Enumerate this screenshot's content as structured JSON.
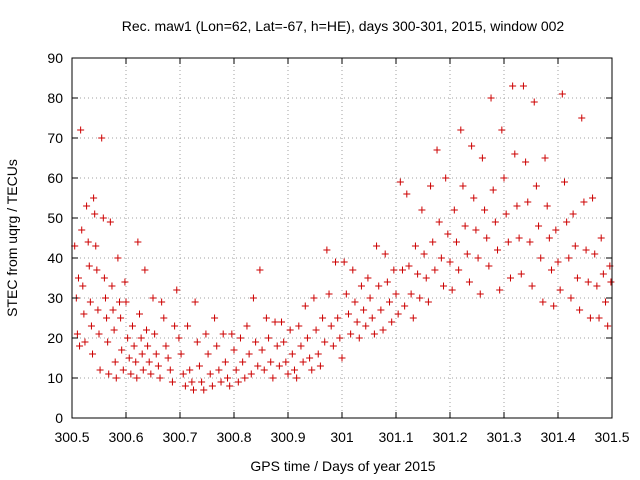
{
  "chart_data": {
    "type": "scatter",
    "title": "Rec. maw1 (Lon=62, Lat=-67, h=HE), days 300-301, 2015, window 002",
    "xlabel": "GPS time / Days of year 2015",
    "ylabel": "STEC from uqrg / TECUs",
    "xlim": [
      300.5,
      301.5
    ],
    "ylim": [
      0,
      90
    ],
    "x_ticks": [
      {
        "value": 300.5,
        "label": "300.5"
      },
      {
        "value": 300.6,
        "label": "300.6"
      },
      {
        "value": 300.7,
        "label": "300.7"
      },
      {
        "value": 300.8,
        "label": "300.8"
      },
      {
        "value": 300.9,
        "label": "300.9"
      },
      {
        "value": 301.0,
        "label": "301"
      },
      {
        "value": 301.1,
        "label": "301.1"
      },
      {
        "value": 301.2,
        "label": "301.2"
      },
      {
        "value": 301.3,
        "label": "301.3"
      },
      {
        "value": 301.4,
        "label": "301.4"
      },
      {
        "value": 301.5,
        "label": "301.5"
      }
    ],
    "y_ticks": [
      {
        "value": 0,
        "label": "0"
      },
      {
        "value": 10,
        "label": "10"
      },
      {
        "value": 20,
        "label": "20"
      },
      {
        "value": 30,
        "label": "30"
      },
      {
        "value": 40,
        "label": "40"
      },
      {
        "value": 50,
        "label": "50"
      },
      {
        "value": 60,
        "label": "60"
      },
      {
        "value": 70,
        "label": "70"
      },
      {
        "value": 80,
        "label": "80"
      },
      {
        "value": 90,
        "label": "90"
      }
    ],
    "grid": true,
    "marker": "+",
    "color": "#cc0000",
    "series": [
      {
        "name": "STEC",
        "points": [
          [
            300.505,
            43
          ],
          [
            300.508,
            30
          ],
          [
            300.51,
            21
          ],
          [
            300.512,
            35
          ],
          [
            300.514,
            18
          ],
          [
            300.516,
            72
          ],
          [
            300.518,
            47
          ],
          [
            300.52,
            33
          ],
          [
            300.522,
            26
          ],
          [
            300.524,
            19
          ],
          [
            300.527,
            53
          ],
          [
            300.53,
            44
          ],
          [
            300.532,
            38
          ],
          [
            300.534,
            29
          ],
          [
            300.536,
            23
          ],
          [
            300.538,
            16
          ],
          [
            300.54,
            55
          ],
          [
            300.542,
            51
          ],
          [
            300.544,
            43
          ],
          [
            300.546,
            37
          ],
          [
            300.548,
            27
          ],
          [
            300.55,
            21
          ],
          [
            300.552,
            12
          ],
          [
            300.555,
            70
          ],
          [
            300.558,
            50
          ],
          [
            300.56,
            35
          ],
          [
            300.562,
            30
          ],
          [
            300.564,
            25
          ],
          [
            300.566,
            19
          ],
          [
            300.568,
            11
          ],
          [
            300.571,
            49
          ],
          [
            300.574,
            33
          ],
          [
            300.576,
            27
          ],
          [
            300.578,
            22
          ],
          [
            300.58,
            14
          ],
          [
            300.582,
            10
          ],
          [
            300.585,
            40
          ],
          [
            300.588,
            29
          ],
          [
            300.59,
            25
          ],
          [
            300.592,
            17
          ],
          [
            300.595,
            12
          ],
          [
            300.598,
            34
          ],
          [
            300.6,
            29
          ],
          [
            300.603,
            20
          ],
          [
            300.606,
            15
          ],
          [
            300.609,
            11
          ],
          [
            300.612,
            23
          ],
          [
            300.615,
            18
          ],
          [
            300.618,
            14
          ],
          [
            300.62,
            10
          ],
          [
            300.622,
            44
          ],
          [
            300.625,
            26
          ],
          [
            300.628,
            20
          ],
          [
            300.63,
            16
          ],
          [
            300.632,
            12
          ],
          [
            300.635,
            37
          ],
          [
            300.638,
            22
          ],
          [
            300.64,
            18
          ],
          [
            300.643,
            14
          ],
          [
            300.646,
            11
          ],
          [
            300.65,
            30
          ],
          [
            300.653,
            21
          ],
          [
            300.656,
            16
          ],
          [
            300.66,
            13
          ],
          [
            300.663,
            10
          ],
          [
            300.666,
            29
          ],
          [
            300.67,
            25
          ],
          [
            300.674,
            18
          ],
          [
            300.678,
            15
          ],
          [
            300.682,
            12
          ],
          [
            300.686,
            9
          ],
          [
            300.69,
            23
          ],
          [
            300.694,
            32
          ],
          [
            300.698,
            20
          ],
          [
            300.702,
            16
          ],
          [
            300.706,
            11
          ],
          [
            300.71,
            8
          ],
          [
            300.714,
            23
          ],
          [
            300.718,
            12
          ],
          [
            300.722,
            9
          ],
          [
            300.725,
            7
          ],
          [
            300.728,
            29
          ],
          [
            300.732,
            19
          ],
          [
            300.736,
            13
          ],
          [
            300.74,
            9
          ],
          [
            300.744,
            7
          ],
          [
            300.748,
            21
          ],
          [
            300.752,
            16
          ],
          [
            300.756,
            11
          ],
          [
            300.76,
            8
          ],
          [
            300.764,
            25
          ],
          [
            300.768,
            18
          ],
          [
            300.772,
            12
          ],
          [
            300.776,
            9
          ],
          [
            300.78,
            21
          ],
          [
            300.784,
            14
          ],
          [
            300.788,
            10
          ],
          [
            300.792,
            8
          ],
          [
            300.796,
            21
          ],
          [
            300.8,
            17
          ],
          [
            300.804,
            12
          ],
          [
            300.808,
            9
          ],
          [
            300.812,
            20
          ],
          [
            300.816,
            14
          ],
          [
            300.82,
            10
          ],
          [
            300.824,
            23
          ],
          [
            300.828,
            16
          ],
          [
            300.832,
            11
          ],
          [
            300.836,
            30
          ],
          [
            300.84,
            19
          ],
          [
            300.844,
            13
          ],
          [
            300.848,
            37
          ],
          [
            300.852,
            17
          ],
          [
            300.856,
            12
          ],
          [
            300.86,
            25
          ],
          [
            300.864,
            20
          ],
          [
            300.868,
            14
          ],
          [
            300.872,
            10
          ],
          [
            300.876,
            24
          ],
          [
            300.88,
            18
          ],
          [
            300.884,
            13
          ],
          [
            300.888,
            24
          ],
          [
            300.892,
            19
          ],
          [
            300.896,
            14
          ],
          [
            300.9,
            11
          ],
          [
            300.904,
            22
          ],
          [
            300.908,
            16
          ],
          [
            300.912,
            12
          ],
          [
            300.916,
            10
          ],
          [
            300.92,
            23
          ],
          [
            300.924,
            18
          ],
          [
            300.928,
            14
          ],
          [
            300.932,
            28
          ],
          [
            300.936,
            20
          ],
          [
            300.94,
            15
          ],
          [
            300.944,
            12
          ],
          [
            300.948,
            30
          ],
          [
            300.952,
            22
          ],
          [
            300.956,
            16
          ],
          [
            300.96,
            13
          ],
          [
            300.964,
            25
          ],
          [
            300.968,
            19
          ],
          [
            300.972,
            42
          ],
          [
            300.976,
            31
          ],
          [
            300.98,
            23
          ],
          [
            300.984,
            18
          ],
          [
            300.988,
            39
          ],
          [
            300.992,
            25
          ],
          [
            300.996,
            20
          ],
          [
            301.0,
            15
          ],
          [
            301.004,
            39
          ],
          [
            301.008,
            31
          ],
          [
            301.012,
            26
          ],
          [
            301.016,
            21
          ],
          [
            301.02,
            37
          ],
          [
            301.024,
            29
          ],
          [
            301.028,
            24
          ],
          [
            301.032,
            20
          ],
          [
            301.036,
            33
          ],
          [
            301.04,
            27
          ],
          [
            301.044,
            23
          ],
          [
            301.048,
            35
          ],
          [
            301.052,
            30
          ],
          [
            301.056,
            25
          ],
          [
            301.06,
            21
          ],
          [
            301.064,
            43
          ],
          [
            301.068,
            33
          ],
          [
            301.072,
            27
          ],
          [
            301.076,
            22
          ],
          [
            301.08,
            41
          ],
          [
            301.084,
            34
          ],
          [
            301.088,
            29
          ],
          [
            301.092,
            24
          ],
          [
            301.096,
            37
          ],
          [
            301.1,
            31
          ],
          [
            301.104,
            26
          ],
          [
            301.108,
            59
          ],
          [
            301.112,
            37
          ],
          [
            301.116,
            28
          ],
          [
            301.12,
            56
          ],
          [
            301.124,
            38
          ],
          [
            301.128,
            31
          ],
          [
            301.132,
            25
          ],
          [
            301.136,
            43
          ],
          [
            301.14,
            36
          ],
          [
            301.144,
            30
          ],
          [
            301.148,
            52
          ],
          [
            301.152,
            41
          ],
          [
            301.156,
            35
          ],
          [
            301.16,
            29
          ],
          [
            301.164,
            58
          ],
          [
            301.168,
            44
          ],
          [
            301.172,
            37
          ],
          [
            301.176,
            67
          ],
          [
            301.18,
            49
          ],
          [
            301.184,
            40
          ],
          [
            301.188,
            33
          ],
          [
            301.192,
            60
          ],
          [
            301.196,
            46
          ],
          [
            301.2,
            39
          ],
          [
            301.204,
            32
          ],
          [
            301.208,
            52
          ],
          [
            301.212,
            44
          ],
          [
            301.216,
            37
          ],
          [
            301.22,
            72
          ],
          [
            301.224,
            58
          ],
          [
            301.228,
            48
          ],
          [
            301.232,
            41
          ],
          [
            301.236,
            34
          ],
          [
            301.24,
            68
          ],
          [
            301.244,
            55
          ],
          [
            301.248,
            47
          ],
          [
            301.252,
            40
          ],
          [
            301.256,
            31
          ],
          [
            301.26,
            65
          ],
          [
            301.264,
            52
          ],
          [
            301.268,
            45
          ],
          [
            301.272,
            38
          ],
          [
            301.276,
            80
          ],
          [
            301.28,
            57
          ],
          [
            301.284,
            49
          ],
          [
            301.288,
            42
          ],
          [
            301.292,
            32
          ],
          [
            301.296,
            72
          ],
          [
            301.3,
            60
          ],
          [
            301.304,
            51
          ],
          [
            301.308,
            44
          ],
          [
            301.312,
            35
          ],
          [
            301.316,
            83
          ],
          [
            301.32,
            66
          ],
          [
            301.324,
            53
          ],
          [
            301.328,
            45
          ],
          [
            301.332,
            36
          ],
          [
            301.336,
            83
          ],
          [
            301.34,
            64
          ],
          [
            301.344,
            54
          ],
          [
            301.348,
            44
          ],
          [
            301.352,
            33
          ],
          [
            301.356,
            79
          ],
          [
            301.36,
            58
          ],
          [
            301.364,
            48
          ],
          [
            301.368,
            40
          ],
          [
            301.372,
            29
          ],
          [
            301.376,
            65
          ],
          [
            301.38,
            53
          ],
          [
            301.384,
            45
          ],
          [
            301.388,
            37
          ],
          [
            301.392,
            28
          ],
          [
            301.396,
            47
          ],
          [
            301.4,
            39
          ],
          [
            301.404,
            32
          ],
          [
            301.408,
            81
          ],
          [
            301.412,
            59
          ],
          [
            301.416,
            49
          ],
          [
            301.42,
            40
          ],
          [
            301.424,
            30
          ],
          [
            301.428,
            51
          ],
          [
            301.432,
            43
          ],
          [
            301.436,
            35
          ],
          [
            301.44,
            27
          ],
          [
            301.444,
            75
          ],
          [
            301.448,
            54
          ],
          [
            301.452,
            42
          ],
          [
            301.456,
            34
          ],
          [
            301.46,
            25
          ],
          [
            301.464,
            55
          ],
          [
            301.468,
            41
          ],
          [
            301.472,
            33
          ],
          [
            301.476,
            25
          ],
          [
            301.48,
            45
          ],
          [
            301.484,
            36
          ],
          [
            301.488,
            29
          ],
          [
            301.492,
            23
          ],
          [
            301.496,
            38
          ],
          [
            301.498,
            34
          ]
        ]
      }
    ]
  }
}
